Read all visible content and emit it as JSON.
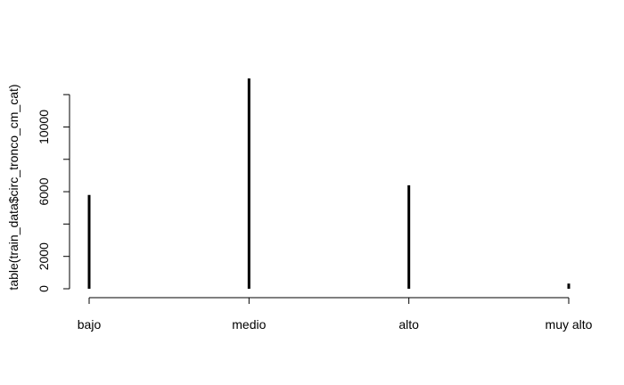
{
  "chart_data": {
    "type": "bar",
    "categories": [
      "bajo",
      "medio",
      "alto",
      "muy alto"
    ],
    "values": [
      5800,
      13000,
      6400,
      320
    ],
    "ylabel": "table(train_data$circ_tronco_cm_cat)",
    "xlabel": "",
    "y_ticks": [
      "0",
      "2000",
      "6000",
      "10000"
    ],
    "ylim": [
      0,
      13000
    ],
    "bar_color": "#000000",
    "grid": false
  }
}
